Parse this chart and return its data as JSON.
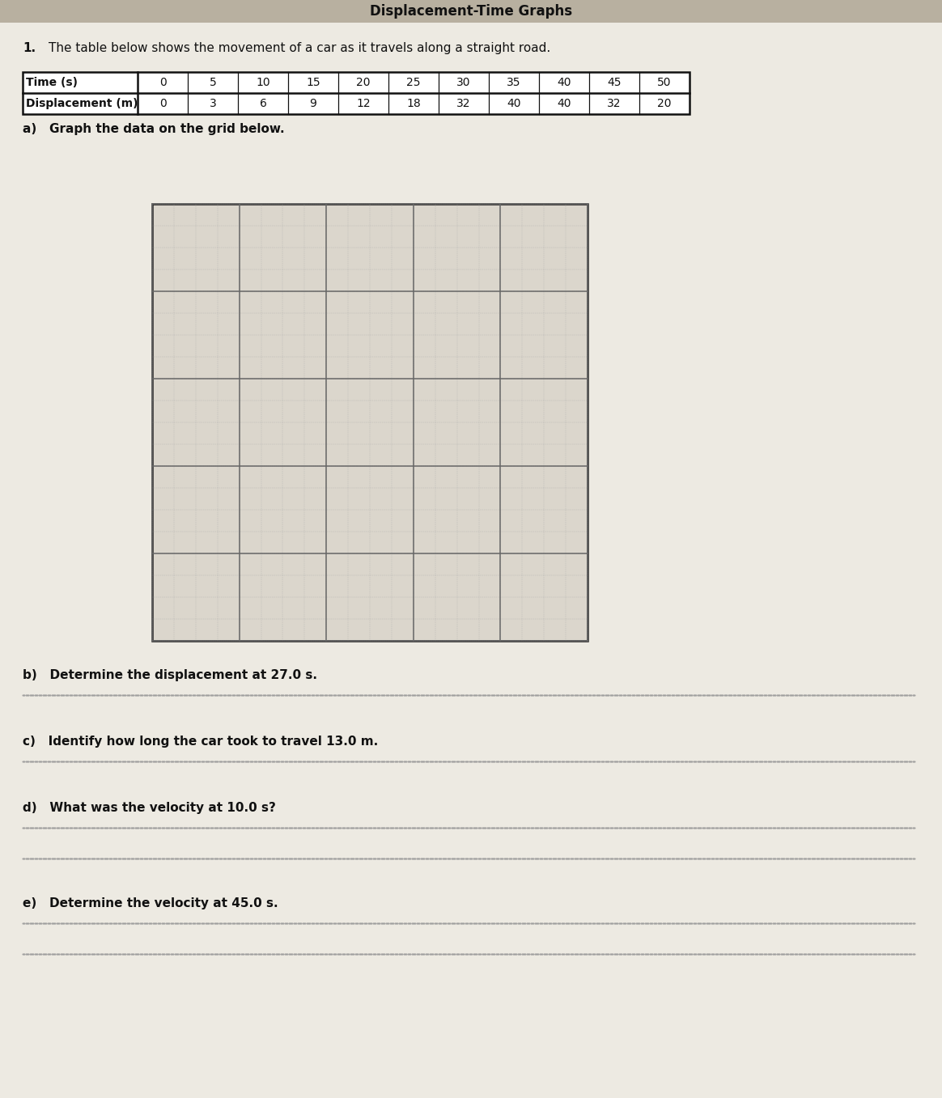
{
  "title": "Displacement-Time Graphs",
  "problem_number": "1.",
  "intro_text": "The table below shows the movement of a car as it travels along a straight road.",
  "table_row1_label": "Time (s)",
  "table_row2_label": "Displacement (m)",
  "time_values": [
    0,
    5,
    10,
    15,
    20,
    25,
    30,
    35,
    40,
    45,
    50
  ],
  "displacement_values": [
    0,
    3,
    6,
    9,
    12,
    18,
    32,
    40,
    40,
    32,
    20
  ],
  "part_a": "a)   Graph the data on the grid below.",
  "part_b": "b)   Determine the displacement at 27.0 s.",
  "part_c": "c)   Identify how long the car took to travel 13.0 m.",
  "part_d": "d)   What was the velocity at 10.0 s?",
  "part_e": "e)   Determine the velocity at 45.0 s.",
  "grid_rows": 20,
  "grid_cols": 20,
  "paper_color": "#edeae2",
  "grid_bg_color": "#dbd6cc",
  "grid_minor_color": "#aaaaaa",
  "grid_major_color": "#666666",
  "table_border_color": "#111111",
  "text_color": "#111111",
  "dotted_line_color": "#999999",
  "title_bar_color": "#b8b0a0"
}
